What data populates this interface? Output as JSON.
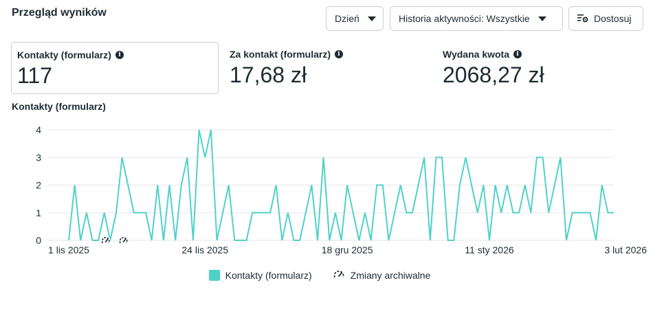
{
  "header": {
    "title": "Przegląd wyników",
    "day_button": "Dzień",
    "history_button": "Historia aktywności: Wszystkie",
    "customize_button": "Dostosuj"
  },
  "metrics": [
    {
      "label": "Kontakty (formularz)",
      "value": "117"
    },
    {
      "label": "Za kontakt (formularz)",
      "value": "17,68 zł"
    },
    {
      "label": "Wydana kwota",
      "value": "2068,27 zł"
    }
  ],
  "chart_title": "Kontakty (formularz)",
  "legend": {
    "series": "Kontakty (formularz)",
    "archival": "Zmiany archiwalne"
  },
  "colors": {
    "series": "#4fd1c9",
    "grid": "#e4e6eb",
    "text": "#1c2b33"
  },
  "chart_data": {
    "type": "line",
    "ylim": [
      0,
      4
    ],
    "yticks": [
      0,
      1,
      2,
      3,
      4
    ],
    "xticks": [
      {
        "index": 0,
        "label": "1 lis 2025"
      },
      {
        "index": 23,
        "label": "24 lis 2025"
      },
      {
        "index": 47,
        "label": "18 gru 2025"
      },
      {
        "index": 71,
        "label": "11 sty 2026"
      },
      {
        "index": 94,
        "label": "3 lut 2026"
      }
    ],
    "archival_markers": [
      6,
      9
    ],
    "series": [
      {
        "name": "Kontakty (formularz)",
        "values": [
          0,
          2,
          0,
          1,
          0,
          0,
          1,
          0,
          1,
          3,
          2,
          1,
          1,
          1,
          0,
          2,
          0,
          2,
          0,
          2,
          3,
          0,
          4,
          3,
          4,
          0,
          1,
          2,
          0,
          0,
          0,
          1,
          1,
          1,
          1,
          2,
          0,
          1,
          0,
          0,
          1,
          2,
          0,
          3,
          0,
          1,
          0,
          2,
          1,
          0,
          1,
          0,
          2,
          2,
          0,
          1,
          2,
          1,
          1,
          2,
          3,
          0,
          3,
          3,
          0,
          0,
          2,
          3,
          2,
          1,
          2,
          0,
          2,
          1,
          2,
          1,
          1,
          2,
          1,
          3,
          3,
          1,
          2,
          3,
          0,
          1,
          1,
          1,
          1,
          0,
          2,
          1,
          1
        ]
      }
    ]
  }
}
